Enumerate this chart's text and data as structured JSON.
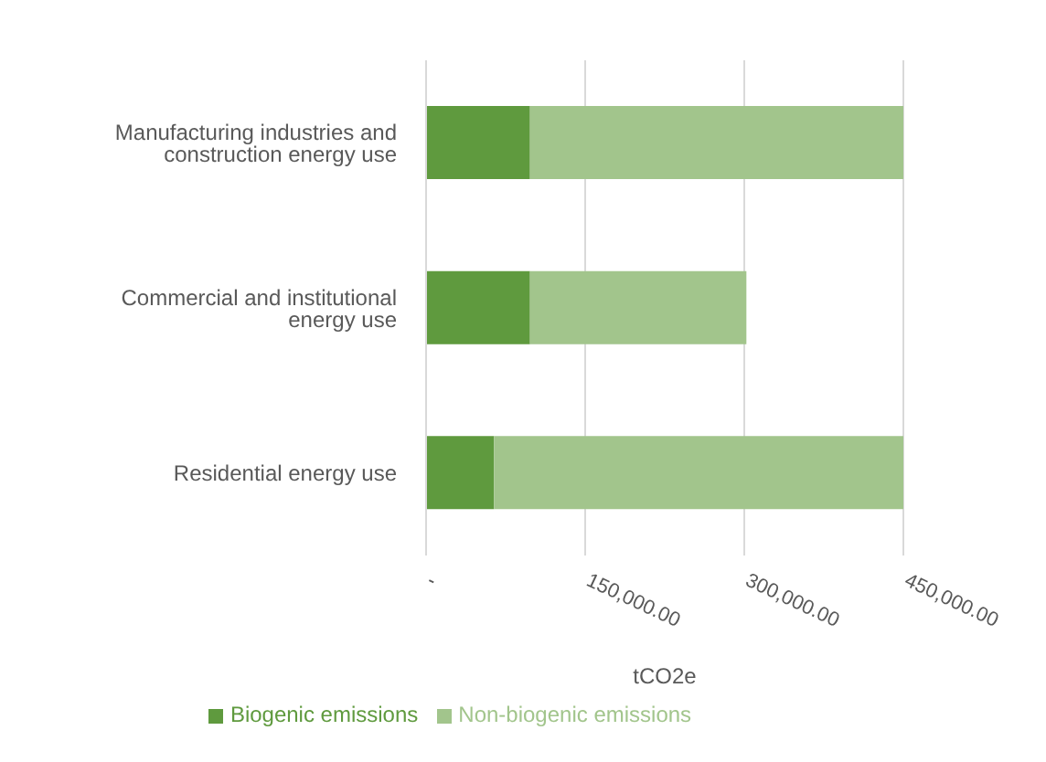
{
  "chart_data": {
    "type": "bar",
    "orientation": "horizontal",
    "stacked": true,
    "categories": [
      "Manufacturing industries and construction energy use",
      "Commercial and institutional energy use",
      "Residential energy use"
    ],
    "series": [
      {
        "name": "Biogenic emissions",
        "color": "#5f9a3e",
        "values": [
          98000,
          98000,
          64000
        ]
      },
      {
        "name": "Non-biogenic emissions",
        "color": "#a2c58c",
        "values": [
          352000,
          204000,
          386000
        ]
      }
    ],
    "xlim": [
      0,
      450000
    ],
    "xticks": [
      {
        "value": 0,
        "label": "-"
      },
      {
        "value": 150000,
        "label": "150,000.00"
      },
      {
        "value": 300000,
        "label": "300,000.00"
      },
      {
        "value": 450000,
        "label": "450,000.00"
      }
    ],
    "xlabel": "tCO2e",
    "grid": "x",
    "legend": "bottom"
  }
}
